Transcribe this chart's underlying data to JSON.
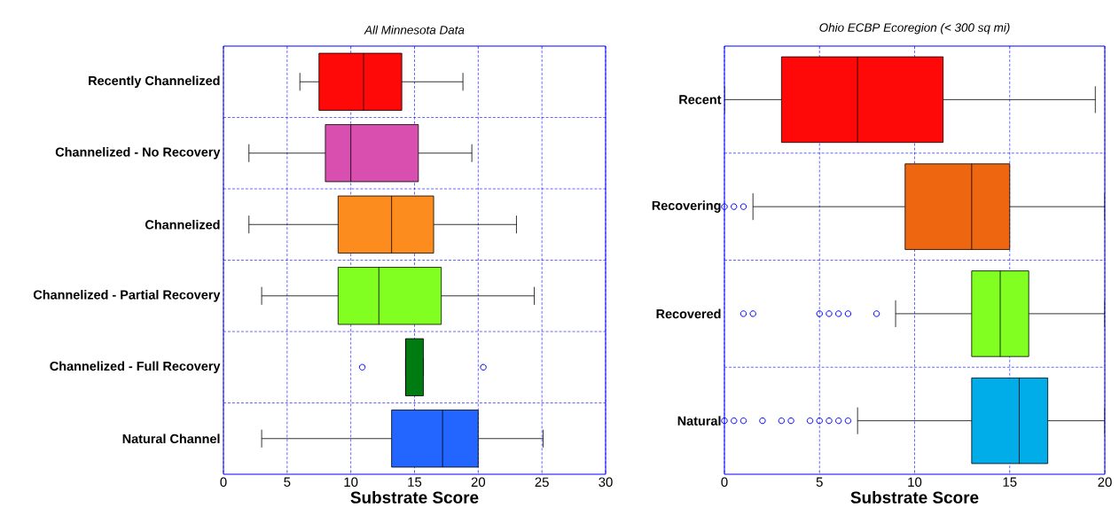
{
  "chart_data": [
    {
      "type": "box",
      "title": "All Minnesota Data",
      "xlabel": "Substrate Score",
      "orientation": "horizontal",
      "categories": [
        "Recently Channelized",
        "Channelized - No Recovery",
        "Channelized",
        "Channelized - Partial Recovery",
        "Channelized - Full Recovery",
        "Natural Channel"
      ],
      "boxes": [
        {
          "low": 6.0,
          "q1": 7.5,
          "median": 11.0,
          "q3": 14.0,
          "high": 18.8
        },
        {
          "low": 2.0,
          "q1": 8.0,
          "median": 10.0,
          "q3": 15.3,
          "high": 19.5
        },
        {
          "low": 2.0,
          "q1": 9.0,
          "median": 13.2,
          "q3": 16.5,
          "high": 23.0
        },
        {
          "low": 3.0,
          "q1": 9.0,
          "median": 12.2,
          "q3": 17.1,
          "high": 24.4
        },
        {
          "low": 14.3,
          "q1": 14.3,
          "median": 14.3,
          "q3": 15.7,
          "high": 15.7,
          "outliers": [
            10.9,
            20.4
          ]
        },
        {
          "low": 3.0,
          "q1": 13.2,
          "median": 17.2,
          "q3": 20.0,
          "high": 25.1
        }
      ],
      "colors": [
        "#ff0808",
        "#d94fb0",
        "#fd8c1e",
        "#80ff20",
        "#007b12",
        "#2266ff"
      ],
      "xlim": [
        0,
        30
      ],
      "xticks": [
        0,
        5,
        10,
        15,
        20,
        25,
        30
      ],
      "grid": true
    },
    {
      "type": "box",
      "title": "Ohio ECBP Ecoregion (< 300 sq mi)",
      "xlabel": "Substrate Score",
      "orientation": "horizontal",
      "categories": [
        "Recent",
        "Recovering",
        "Recovered",
        "Natural"
      ],
      "boxes": [
        {
          "low": 0,
          "q1": 3.0,
          "median": 7.0,
          "q3": 11.5,
          "high": 19.5
        },
        {
          "low": 1.5,
          "q1": 9.5,
          "median": 13.0,
          "q3": 15.0,
          "high": 20,
          "outliers": [
            0,
            0.5,
            1.0
          ]
        },
        {
          "low": 9.0,
          "q1": 13.0,
          "median": 14.5,
          "q3": 16.0,
          "high": 20,
          "outliers": [
            1.0,
            1.5,
            5.0,
            5.5,
            6.0,
            6.5,
            8.0
          ]
        },
        {
          "low": 7.0,
          "q1": 13.0,
          "median": 15.5,
          "q3": 17.0,
          "high": 20,
          "outliers": [
            0,
            0.5,
            1.0,
            2.0,
            3.0,
            3.5,
            4.5,
            5.0,
            5.5,
            6.0,
            6.5
          ]
        }
      ],
      "colors": [
        "#ff0808",
        "#ef6610",
        "#80ff20",
        "#00ade8"
      ],
      "xlim": [
        0,
        20
      ],
      "xticks": [
        0,
        5,
        10,
        15,
        20
      ],
      "grid": true
    }
  ]
}
